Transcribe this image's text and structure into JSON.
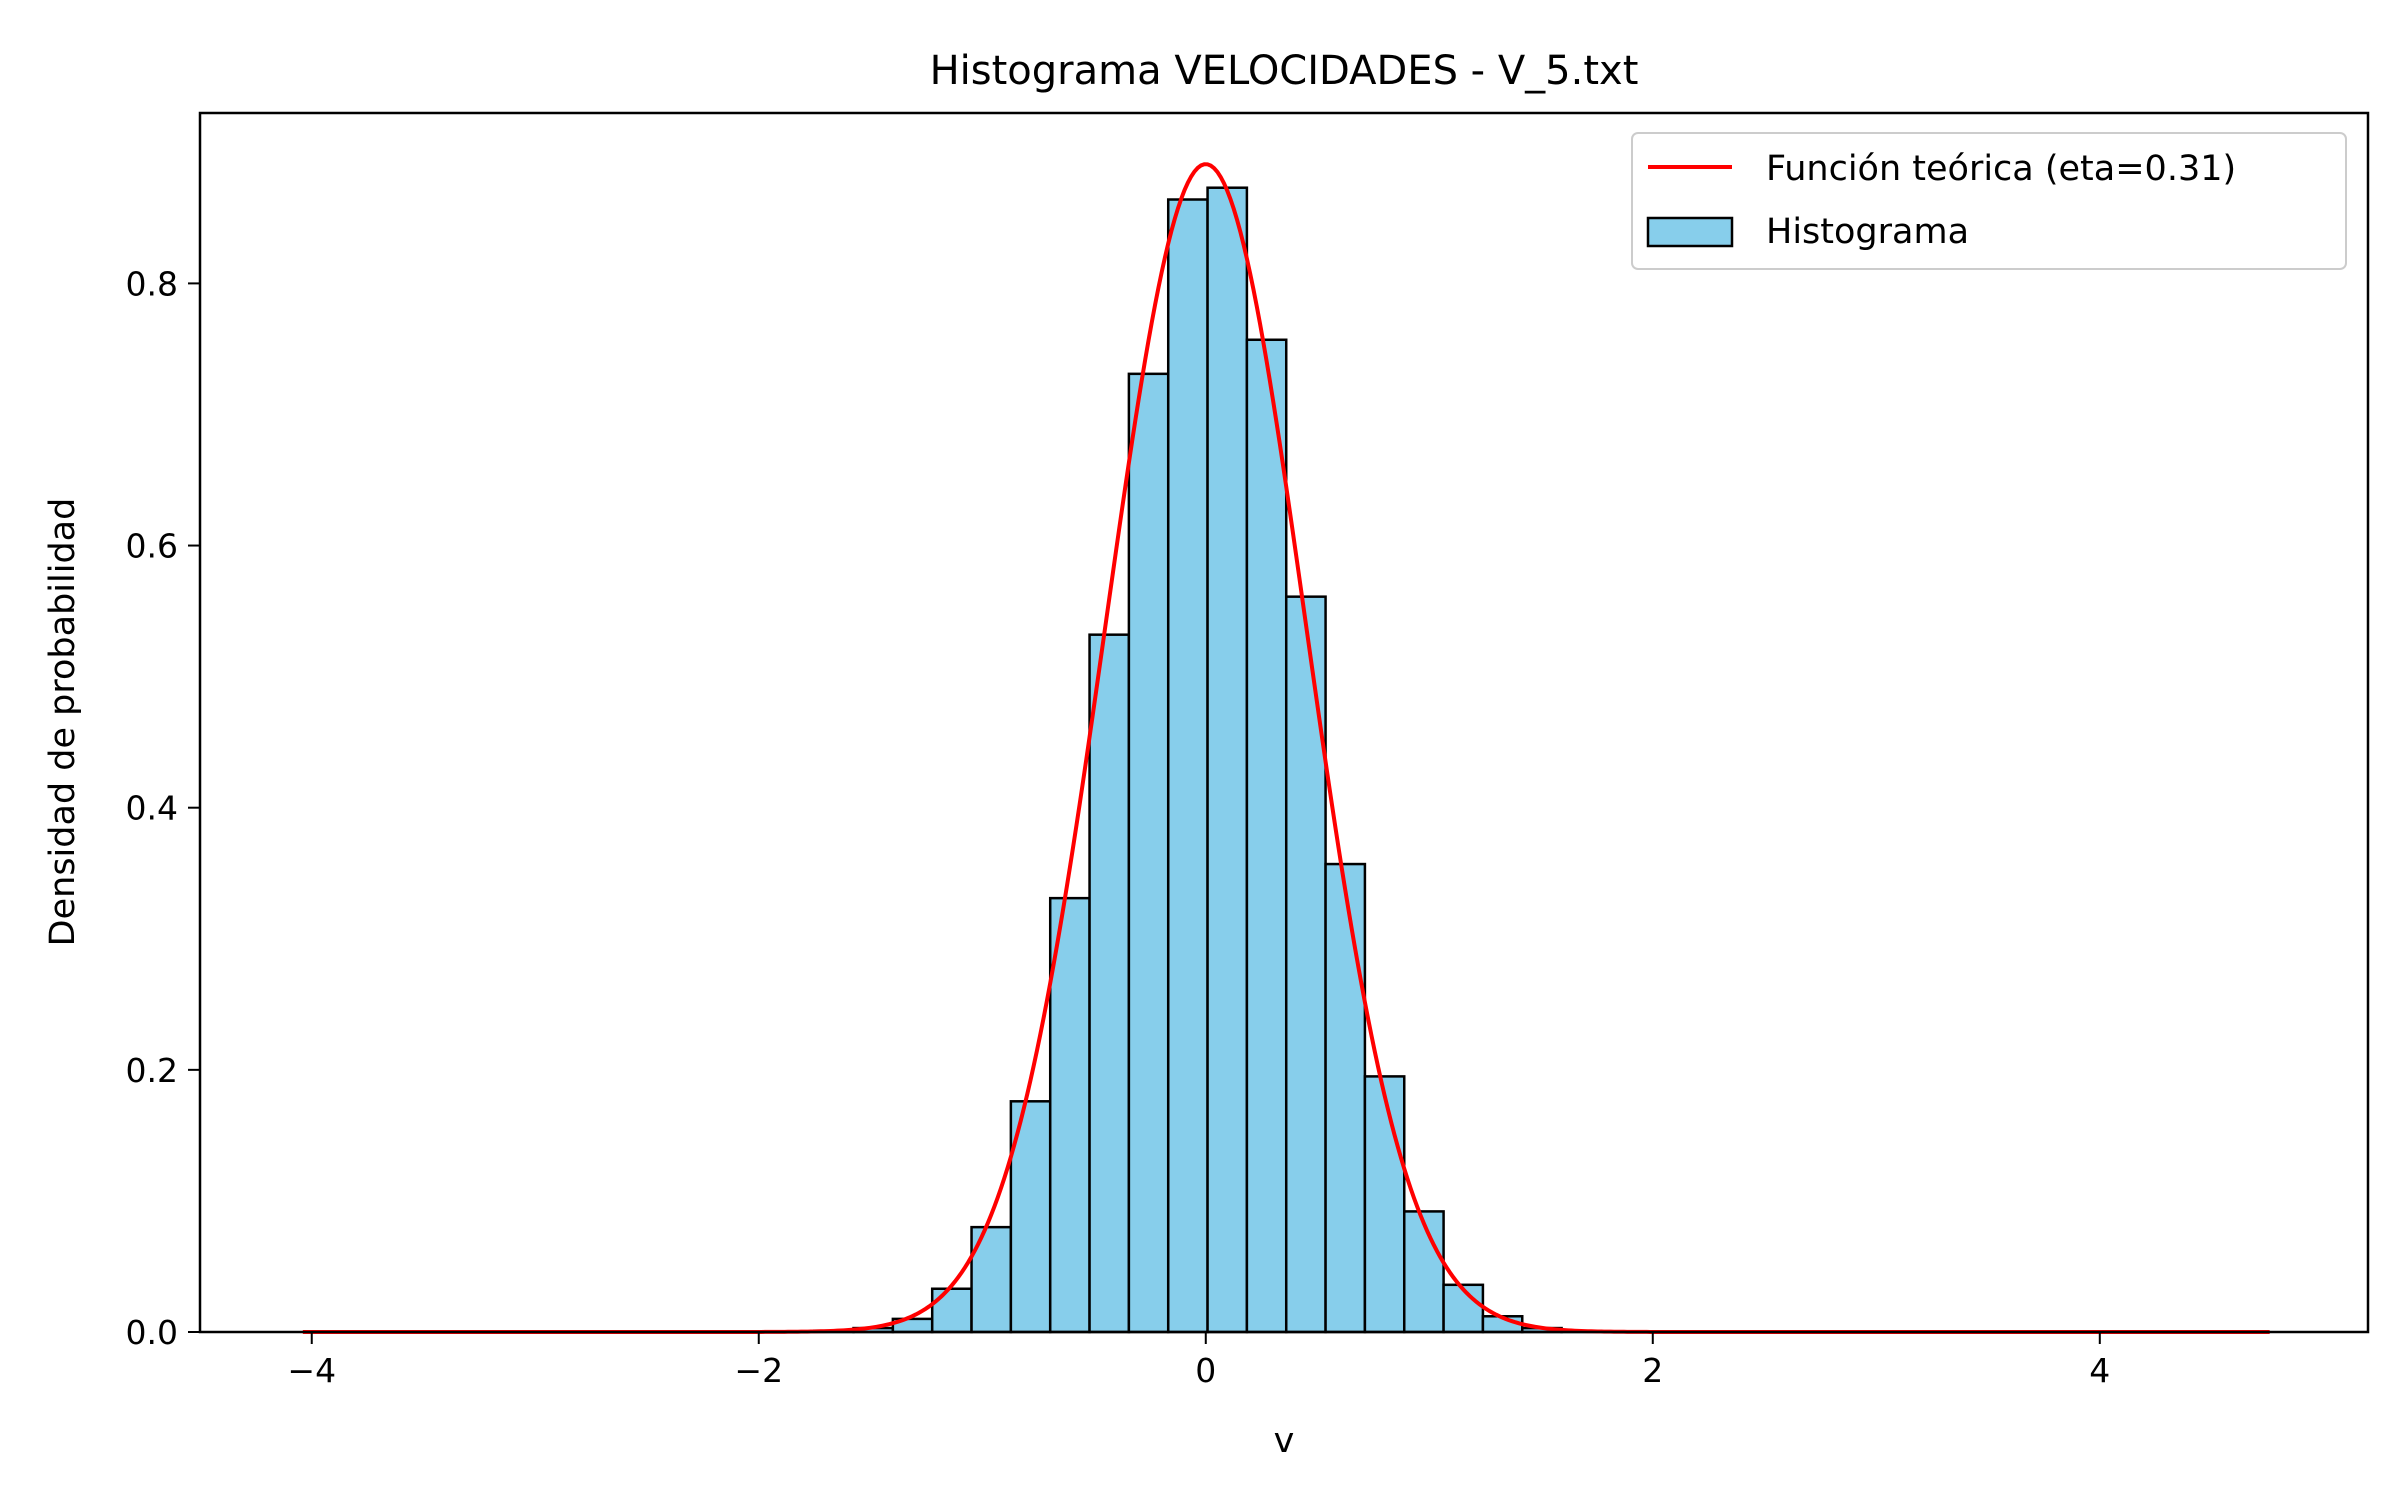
{
  "chart_data": {
    "type": "bar",
    "title": "Histograma VELOCIDADES - V_5.txt",
    "xlabel": "v",
    "ylabel": "Densidad de probabilidad",
    "xlim": [
      -4.5,
      5.2
    ],
    "ylim": [
      0,
      0.93
    ],
    "xticks": [
      -4,
      -2,
      0,
      2,
      4
    ],
    "xtick_labels": [
      "−4",
      "−2",
      "0",
      "2",
      "4"
    ],
    "yticks": [
      0.0,
      0.2,
      0.4,
      0.6,
      0.8
    ],
    "ytick_labels": [
      "0.0",
      "0.2",
      "0.4",
      "0.6",
      "0.8"
    ],
    "grid": false,
    "legend_position": "top-right",
    "histogram": {
      "name": "Histograma",
      "color": "#87CEEB",
      "edge_color": "#000000",
      "bin_edges": [
        -4.04,
        -3.864,
        -3.688,
        -3.512,
        -3.336,
        -3.16,
        -2.984,
        -2.808,
        -2.632,
        -2.456,
        -2.28,
        -2.104,
        -1.928,
        -1.752,
        -1.576,
        -1.4,
        -1.224,
        -1.048,
        -0.872,
        -0.696,
        -0.52,
        -0.344,
        -0.168,
        0.008,
        0.184,
        0.36,
        0.536,
        0.712,
        0.888,
        1.064,
        1.24,
        1.416,
        1.592,
        1.768,
        1.944,
        2.12,
        2.296,
        2.472,
        2.648,
        2.824,
        3.0,
        3.176,
        3.352,
        3.528,
        3.704,
        3.88,
        4.056,
        4.232,
        4.408,
        4.584,
        4.76
      ],
      "values": [
        0,
        0,
        0,
        0,
        0,
        0,
        0,
        0,
        0,
        0,
        0,
        0,
        0.0005,
        0.001,
        0.003,
        0.01,
        0.033,
        0.08,
        0.176,
        0.331,
        0.532,
        0.731,
        0.864,
        0.873,
        0.757,
        0.561,
        0.357,
        0.195,
        0.092,
        0.036,
        0.012,
        0.003,
        0.0008,
        0.0002,
        0,
        0,
        0,
        0,
        0,
        0,
        0,
        0,
        0,
        0,
        0,
        0,
        0,
        0,
        0,
        0
      ]
    },
    "theory": {
      "name": "Función teórica (eta=0.31)",
      "color": "#ff0000",
      "x_range": [
        -4.04,
        4.76
      ],
      "mean": 0.0,
      "sigma": 0.4477,
      "peak": 0.891
    }
  }
}
